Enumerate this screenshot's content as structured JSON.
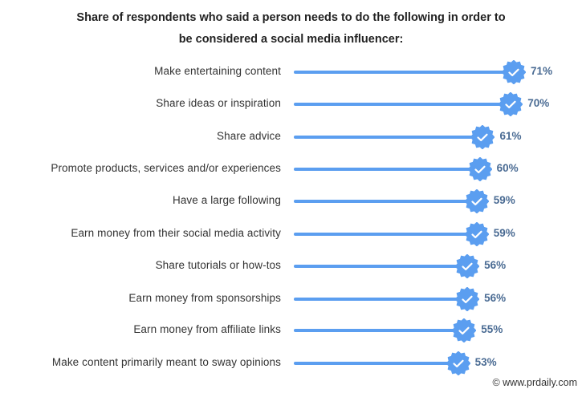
{
  "title_line1": "Share of respondents who said a person needs to do the following in order to",
  "title_line2": "be considered a social media influencer:",
  "credit": "© www.prdaily.com",
  "colors": {
    "bar": "#5b9ef0",
    "badge": "#5b9ef0",
    "value_text": "#4a6b93"
  },
  "chart_data": {
    "type": "bar",
    "orientation": "horizontal",
    "title": "Share of respondents who said a person needs to do the following in order to be considered a social media influencer:",
    "categories": [
      "Make entertaining content",
      "Share ideas or inspiration",
      "Share advice",
      "Promote products, services and/or experiences",
      "Have a large following",
      "Earn money from their social media activity",
      "Share tutorials or how-tos",
      "Earn money from sponsorships",
      "Earn money from affiliate links",
      "Make content primarily meant to sway opinions"
    ],
    "values": [
      71,
      70,
      61,
      60,
      59,
      59,
      56,
      56,
      55,
      53
    ],
    "value_labels": [
      "71%",
      "70%",
      "61%",
      "60%",
      "59%",
      "59%",
      "56%",
      "56%",
      "55%",
      "53%"
    ],
    "xlabel": "",
    "ylabel": "",
    "unit": "%",
    "grid": false,
    "legend": null,
    "marker": "verified-badge-icon"
  }
}
